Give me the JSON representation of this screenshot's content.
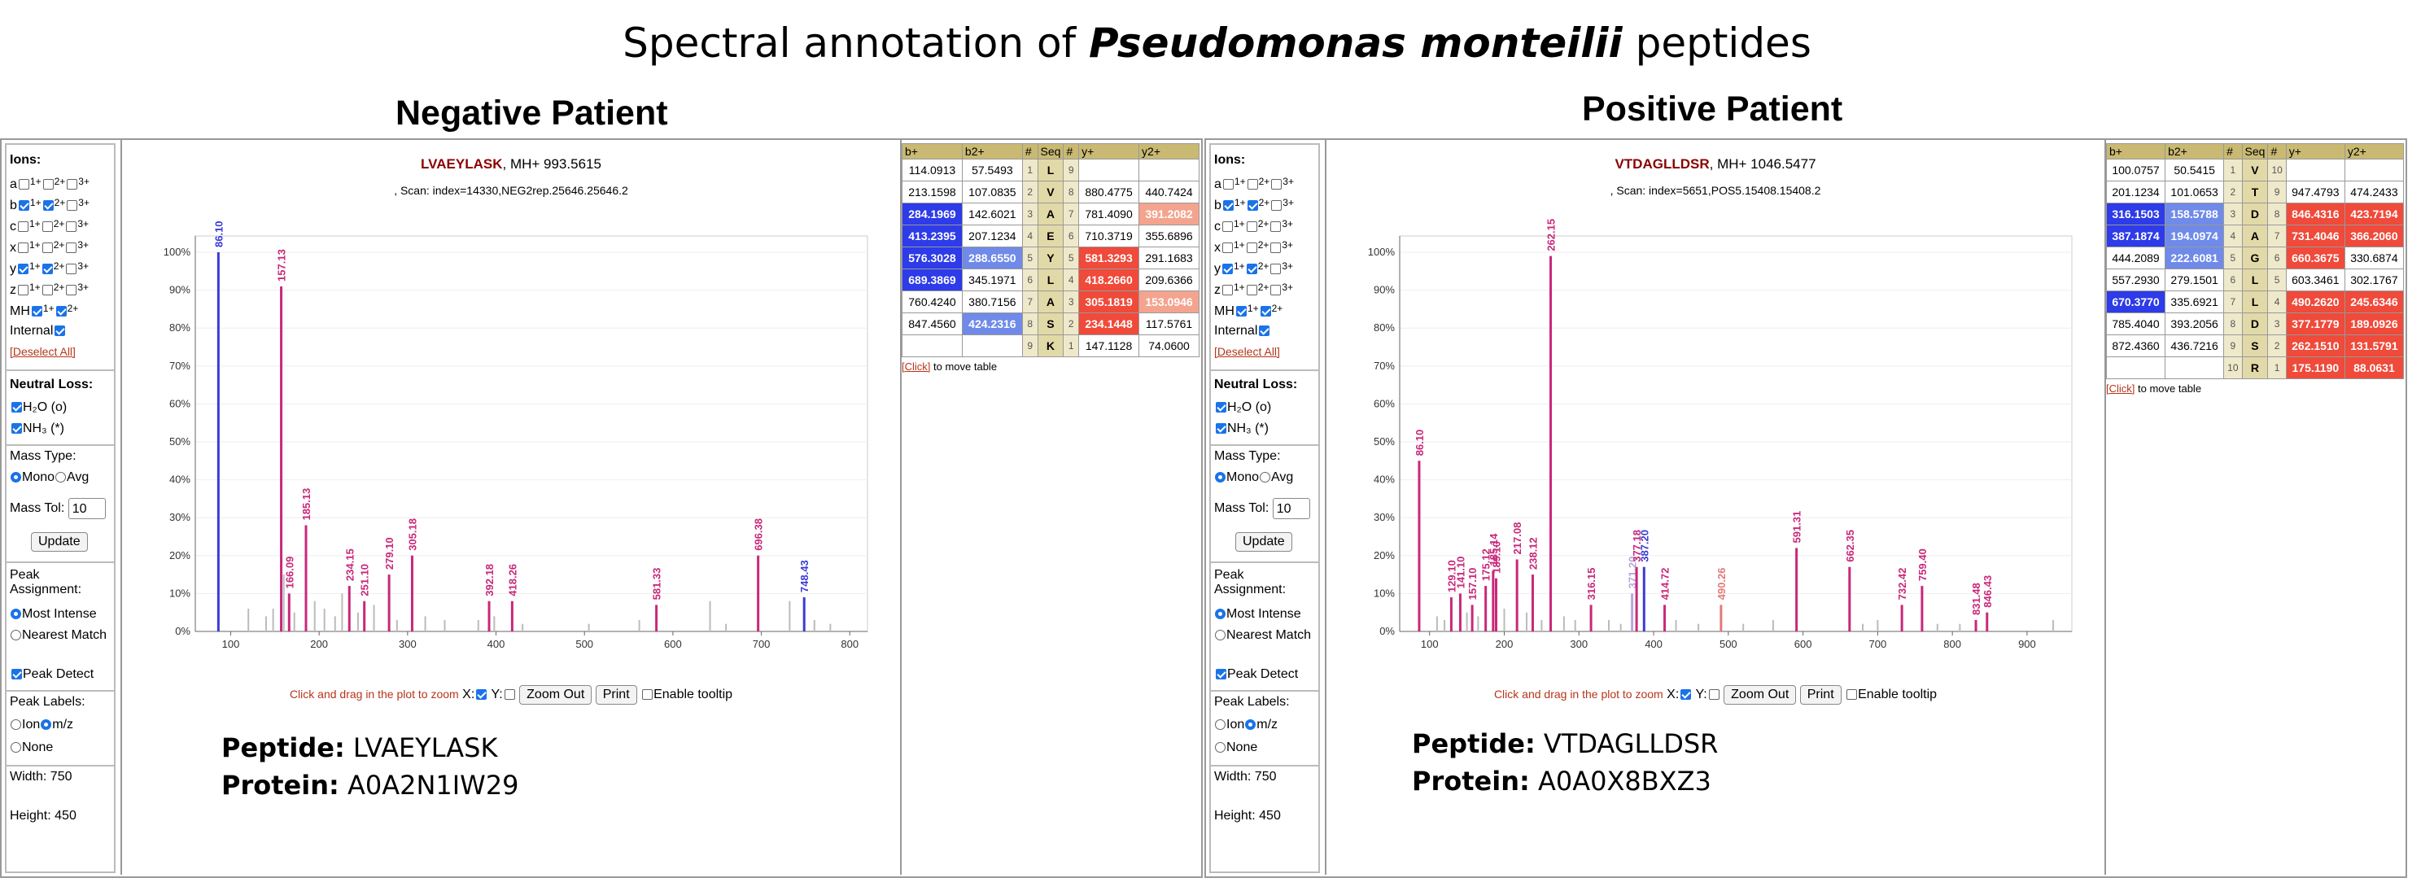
{
  "figure": {
    "title_prefix": "Spectral annotation of ",
    "title_italic": "Pseudomonas monteilii",
    "title_suffix": " peptides"
  },
  "colors": {
    "b_ion": "#3b3bd6",
    "y_ion": "#c8287a",
    "unmatched": "#bbbbbb",
    "link": "#b5351a",
    "table_header": "#c9b972"
  },
  "panels": [
    {
      "patient_title": "Negative Patient",
      "peptide_name": "LVAEYLASK",
      "mh": "MH+ 993.5615",
      "scan": ", Scan: index=14330,NEG2rep.25646.25646.2",
      "peptide_label": "Peptide:",
      "peptide_value": "LVAEYLASK",
      "protein_label": "Protein:",
      "protein_value": "A0A2N1IW29",
      "options": {
        "ions_label": "Ions:",
        "ion_rows": [
          {
            "name": "a",
            "checks": [
              false,
              false,
              false
            ]
          },
          {
            "name": "b",
            "checks": [
              true,
              true,
              false
            ]
          },
          {
            "name": "c",
            "checks": [
              false,
              false,
              false
            ]
          },
          {
            "name": "x",
            "checks": [
              false,
              false,
              false
            ]
          },
          {
            "name": "y",
            "checks": [
              true,
              true,
              false
            ]
          },
          {
            "name": "z",
            "checks": [
              false,
              false,
              false
            ]
          }
        ],
        "charge_labels": [
          "1+",
          "2+",
          "3+"
        ],
        "mh_label": "MH",
        "mh_checks": [
          true,
          true
        ],
        "internal_label": "Internal",
        "deselect": "[Deselect All]",
        "neutral_loss_label": "Neutral Loss:",
        "h2o": "H₂O (o)",
        "nh3": "NH₃ (*)",
        "mass_type_label": "Mass Type:",
        "mono": "Mono",
        "avg": "Avg",
        "mass_tol_label": "Mass Tol:",
        "mass_tol_value": "10",
        "update": "Update",
        "peak_assignment_label": "Peak Assignment:",
        "most_intense": "Most Intense",
        "nearest_match": "Nearest Match",
        "peak_detect": "Peak Detect",
        "peak_labels_label": "Peak Labels:",
        "ion": "Ion",
        "mz": "m/z",
        "none": "None",
        "width_label": "Width:",
        "width_value": "750",
        "height_label": "Height:",
        "height_value": "450"
      },
      "controls": {
        "hint": "Click and drag in the plot to zoom",
        "x": "X:",
        "y": "Y:",
        "zoom_out": "Zoom Out",
        "print": "Print",
        "tooltip": "Enable tooltip"
      },
      "table": {
        "headers": [
          "b+",
          "b2+",
          "#",
          "Seq",
          "#",
          "y+",
          "y2+"
        ],
        "rows": [
          {
            "b1": "114.0913",
            "b2": "57.5493",
            "n": "1",
            "seq": "L",
            "m": "9",
            "y1": "",
            "y2": "",
            "hb1": 0,
            "hb2": 0,
            "hy1": 0,
            "hy2": 0
          },
          {
            "b1": "213.1598",
            "b2": "107.0835",
            "n": "2",
            "seq": "V",
            "m": "8",
            "y1": "880.4775",
            "y2": "440.7424",
            "hb1": 0,
            "hb2": 0,
            "hy1": 0,
            "hy2": 0
          },
          {
            "b1": "284.1969",
            "b2": "142.6021",
            "n": "3",
            "seq": "A",
            "m": "7",
            "y1": "781.4090",
            "y2": "391.2082",
            "hb1": 2,
            "hb2": 0,
            "hy1": 0,
            "hy2": 1
          },
          {
            "b1": "413.2395",
            "b2": "207.1234",
            "n": "4",
            "seq": "E",
            "m": "6",
            "y1": "710.3719",
            "y2": "355.6896",
            "hb1": 2,
            "hb2": 0,
            "hy1": 0,
            "hy2": 0
          },
          {
            "b1": "576.3028",
            "b2": "288.6550",
            "n": "5",
            "seq": "Y",
            "m": "5",
            "y1": "581.3293",
            "y2": "291.1683",
            "hb1": 2,
            "hb2": 1,
            "hy1": 2,
            "hy2": 0
          },
          {
            "b1": "689.3869",
            "b2": "345.1971",
            "n": "6",
            "seq": "L",
            "m": "4",
            "y1": "418.2660",
            "y2": "209.6366",
            "hb1": 2,
            "hb2": 0,
            "hy1": 2,
            "hy2": 0
          },
          {
            "b1": "760.4240",
            "b2": "380.7156",
            "n": "7",
            "seq": "A",
            "m": "3",
            "y1": "305.1819",
            "y2": "153.0946",
            "hb1": 0,
            "hb2": 0,
            "hy1": 2,
            "hy2": 1
          },
          {
            "b1": "847.4560",
            "b2": "424.2316",
            "n": "8",
            "seq": "S",
            "m": "2",
            "y1": "234.1448",
            "y2": "117.5761",
            "hb1": 0,
            "hb2": 1,
            "hy1": 2,
            "hy2": 0
          },
          {
            "b1": "",
            "b2": "",
            "n": "9",
            "seq": "K",
            "m": "1",
            "y1": "147.1128",
            "y2": "74.0600",
            "hb1": 0,
            "hb2": 0,
            "hy1": 0,
            "hy2": 0
          }
        ],
        "move_link": "[Click]",
        "move_text": " to move table"
      },
      "chart_data": {
        "type": "bar",
        "x_range": [
          60,
          820
        ],
        "xticks": [
          100,
          200,
          300,
          400,
          500,
          600,
          700,
          800
        ],
        "y_range": [
          0,
          100
        ],
        "yticks": [
          "0%",
          "10%",
          "20%",
          "30%",
          "40%",
          "50%",
          "60%",
          "70%",
          "80%",
          "90%",
          "100%"
        ],
        "peaks": [
          {
            "mz": 86.1,
            "intensity": 100,
            "ion": "b",
            "label": "86.10"
          },
          {
            "mz": 157.13,
            "intensity": 91,
            "ion": "y",
            "label": "157.13"
          },
          {
            "mz": 166.09,
            "intensity": 10,
            "ion": "y",
            "label": "166.09"
          },
          {
            "mz": 185.13,
            "intensity": 28,
            "ion": "y",
            "label": "185.13"
          },
          {
            "mz": 234.15,
            "intensity": 12,
            "ion": "y",
            "label": "234.15"
          },
          {
            "mz": 251.1,
            "intensity": 8,
            "ion": "y",
            "label": "251.10"
          },
          {
            "mz": 279.1,
            "intensity": 15,
            "ion": "y",
            "label": "279.10"
          },
          {
            "mz": 305.18,
            "intensity": 20,
            "ion": "y",
            "label": "305.18"
          },
          {
            "mz": 392.18,
            "intensity": 8,
            "ion": "y",
            "label": "392.18"
          },
          {
            "mz": 418.26,
            "intensity": 8,
            "ion": "y",
            "label": "418.26"
          },
          {
            "mz": 581.33,
            "intensity": 7,
            "ion": "y",
            "label": "581.33"
          },
          {
            "mz": 696.38,
            "intensity": 20,
            "ion": "y",
            "label": "696.38"
          },
          {
            "mz": 748.43,
            "intensity": 9,
            "ion": "b",
            "label": "748.43"
          }
        ],
        "unmatched": [
          [
            120,
            6
          ],
          [
            140,
            4
          ],
          [
            148,
            6
          ],
          [
            160,
            15
          ],
          [
            172,
            5
          ],
          [
            195,
            8
          ],
          [
            206,
            6
          ],
          [
            218,
            4
          ],
          [
            226,
            10
          ],
          [
            244,
            5
          ],
          [
            262,
            7
          ],
          [
            288,
            3
          ],
          [
            320,
            4
          ],
          [
            342,
            3
          ],
          [
            380,
            3
          ],
          [
            398,
            4
          ],
          [
            430,
            2
          ],
          [
            505,
            2
          ],
          [
            562,
            3
          ],
          [
            642,
            8
          ],
          [
            660,
            2
          ],
          [
            732,
            8
          ],
          [
            760,
            3
          ],
          [
            778,
            2
          ]
        ]
      }
    },
    {
      "patient_title": "Positive Patient",
      "peptide_name": "VTDAGLLDSR",
      "mh": "MH+ 1046.5477",
      "scan": ", Scan: index=5651,POS5.15408.15408.2",
      "peptide_label": "Peptide:",
      "peptide_value": "VTDAGLLDSR",
      "protein_label": "Protein:",
      "protein_value": "A0A0X8BXZ3",
      "options": {
        "ions_label": "Ions:",
        "ion_rows": [
          {
            "name": "a",
            "checks": [
              false,
              false,
              false
            ]
          },
          {
            "name": "b",
            "checks": [
              true,
              true,
              false
            ]
          },
          {
            "name": "c",
            "checks": [
              false,
              false,
              false
            ]
          },
          {
            "name": "x",
            "checks": [
              false,
              false,
              false
            ]
          },
          {
            "name": "y",
            "checks": [
              true,
              true,
              false
            ]
          },
          {
            "name": "z",
            "checks": [
              false,
              false,
              false
            ]
          }
        ],
        "charge_labels": [
          "1+",
          "2+",
          "3+"
        ],
        "mh_label": "MH",
        "mh_checks": [
          true,
          true
        ],
        "internal_label": "Internal",
        "deselect": "[Deselect All]",
        "neutral_loss_label": "Neutral Loss:",
        "h2o": "H₂O (o)",
        "nh3": "NH₃ (*)",
        "mass_type_label": "Mass Type:",
        "mono": "Mono",
        "avg": "Avg",
        "mass_tol_label": "Mass Tol:",
        "mass_tol_value": "10",
        "update": "Update",
        "peak_assignment_label": "Peak Assignment:",
        "most_intense": "Most Intense",
        "nearest_match": "Nearest Match",
        "peak_detect": "Peak Detect",
        "peak_labels_label": "Peak Labels:",
        "ion": "Ion",
        "mz": "m/z",
        "none": "None",
        "width_label": "Width:",
        "width_value": "750",
        "height_label": "Height:",
        "height_value": "450"
      },
      "controls": {
        "hint": "Click and drag in the plot to zoom",
        "x": "X:",
        "y": "Y:",
        "zoom_out": "Zoom Out",
        "print": "Print",
        "tooltip": "Enable tooltip"
      },
      "table": {
        "headers": [
          "b+",
          "b2+",
          "#",
          "Seq",
          "#",
          "y+",
          "y2+"
        ],
        "rows": [
          {
            "b1": "100.0757",
            "b2": "50.5415",
            "n": "1",
            "seq": "V",
            "m": "10",
            "y1": "",
            "y2": "",
            "hb1": 0,
            "hb2": 0,
            "hy1": 0,
            "hy2": 0
          },
          {
            "b1": "201.1234",
            "b2": "101.0653",
            "n": "2",
            "seq": "T",
            "m": "9",
            "y1": "947.4793",
            "y2": "474.2433",
            "hb1": 0,
            "hb2": 0,
            "hy1": 0,
            "hy2": 0
          },
          {
            "b1": "316.1503",
            "b2": "158.5788",
            "n": "3",
            "seq": "D",
            "m": "8",
            "y1": "846.4316",
            "y2": "423.7194",
            "hb1": 2,
            "hb2": 1,
            "hy1": 2,
            "hy2": 2
          },
          {
            "b1": "387.1874",
            "b2": "194.0974",
            "n": "4",
            "seq": "A",
            "m": "7",
            "y1": "731.4046",
            "y2": "366.2060",
            "hb1": 2,
            "hb2": 1,
            "hy1": 2,
            "hy2": 2
          },
          {
            "b1": "444.2089",
            "b2": "222.6081",
            "n": "5",
            "seq": "G",
            "m": "6",
            "y1": "660.3675",
            "y2": "330.6874",
            "hb1": 0,
            "hb2": 1,
            "hy1": 2,
            "hy2": 0
          },
          {
            "b1": "557.2930",
            "b2": "279.1501",
            "n": "6",
            "seq": "L",
            "m": "5",
            "y1": "603.3461",
            "y2": "302.1767",
            "hb1": 0,
            "hb2": 0,
            "hy1": 0,
            "hy2": 0
          },
          {
            "b1": "670.3770",
            "b2": "335.6921",
            "n": "7",
            "seq": "L",
            "m": "4",
            "y1": "490.2620",
            "y2": "245.6346",
            "hb1": 2,
            "hb2": 0,
            "hy1": 2,
            "hy2": 2
          },
          {
            "b1": "785.4040",
            "b2": "393.2056",
            "n": "8",
            "seq": "D",
            "m": "3",
            "y1": "377.1779",
            "y2": "189.0926",
            "hb1": 0,
            "hb2": 0,
            "hy1": 2,
            "hy2": 2
          },
          {
            "b1": "872.4360",
            "b2": "436.7216",
            "n": "9",
            "seq": "S",
            "m": "2",
            "y1": "262.1510",
            "y2": "131.5791",
            "hb1": 0,
            "hb2": 0,
            "hy1": 2,
            "hy2": 2
          },
          {
            "b1": "",
            "b2": "",
            "n": "10",
            "seq": "R",
            "m": "1",
            "y1": "175.1190",
            "y2": "88.0631",
            "hb1": 0,
            "hb2": 0,
            "hy1": 2,
            "hy2": 2
          }
        ],
        "move_link": "[Click]",
        "move_text": " to move table"
      },
      "chart_data": {
        "type": "bar",
        "x_range": [
          60,
          960
        ],
        "xticks": [
          100,
          200,
          300,
          400,
          500,
          600,
          700,
          800,
          900
        ],
        "y_range": [
          0,
          100
        ],
        "yticks": [
          "0%",
          "10%",
          "20%",
          "30%",
          "40%",
          "50%",
          "60%",
          "70%",
          "80%",
          "90%",
          "100%"
        ],
        "peaks": [
          {
            "mz": 86.1,
            "intensity": 45,
            "ion": "y",
            "label": "86.10"
          },
          {
            "mz": 129.1,
            "intensity": 9,
            "ion": "y",
            "label": "129.10"
          },
          {
            "mz": 141.1,
            "intensity": 10,
            "ion": "y",
            "label": "141.10"
          },
          {
            "mz": 157.1,
            "intensity": 7,
            "ion": "y",
            "label": "157.10"
          },
          {
            "mz": 175.12,
            "intensity": 12,
            "ion": "y",
            "label": "175.12"
          },
          {
            "mz": 185.14,
            "intensity": 16,
            "ion": "y",
            "label": "185.14"
          },
          {
            "mz": 189.1,
            "intensity": 14,
            "ion": "y",
            "label": "189.10"
          },
          {
            "mz": 217.08,
            "intensity": 19,
            "ion": "y",
            "label": "217.08"
          },
          {
            "mz": 238.12,
            "intensity": 15,
            "ion": "y",
            "label": "238.12"
          },
          {
            "mz": 262.15,
            "intensity": 99,
            "ion": "y",
            "label": "262.15"
          },
          {
            "mz": 316.15,
            "intensity": 7,
            "ion": "y",
            "label": "316.15"
          },
          {
            "mz": 371.2,
            "intensity": 10,
            "ion": "faint",
            "label": "371.20"
          },
          {
            "mz": 377.18,
            "intensity": 17,
            "ion": "y",
            "label": "377.18"
          },
          {
            "mz": 387.2,
            "intensity": 17,
            "ion": "b",
            "label": "387.20"
          },
          {
            "mz": 414.72,
            "intensity": 7,
            "ion": "y",
            "label": "414.72"
          },
          {
            "mz": 490.26,
            "intensity": 7,
            "ion": "faintred",
            "label": "490.26"
          },
          {
            "mz": 591.31,
            "intensity": 22,
            "ion": "y",
            "label": "591.31"
          },
          {
            "mz": 662.35,
            "intensity": 17,
            "ion": "y",
            "label": "662.35"
          },
          {
            "mz": 732.42,
            "intensity": 7,
            "ion": "y",
            "label": "732.42"
          },
          {
            "mz": 759.4,
            "intensity": 12,
            "ion": "y",
            "label": "759.40"
          },
          {
            "mz": 831.48,
            "intensity": 3,
            "ion": "y",
            "label": "831.48"
          },
          {
            "mz": 846.43,
            "intensity": 5,
            "ion": "y",
            "label": "846.43"
          }
        ],
        "unmatched": [
          [
            110,
            4
          ],
          [
            120,
            3
          ],
          [
            150,
            5
          ],
          [
            165,
            4
          ],
          [
            200,
            6
          ],
          [
            230,
            5
          ],
          [
            250,
            3
          ],
          [
            280,
            4
          ],
          [
            295,
            3
          ],
          [
            340,
            3
          ],
          [
            356,
            2
          ],
          [
            430,
            3
          ],
          [
            460,
            2
          ],
          [
            520,
            2
          ],
          [
            560,
            3
          ],
          [
            680,
            2
          ],
          [
            700,
            3
          ],
          [
            780,
            2
          ],
          [
            810,
            2
          ],
          [
            935,
            3
          ]
        ]
      }
    }
  ]
}
